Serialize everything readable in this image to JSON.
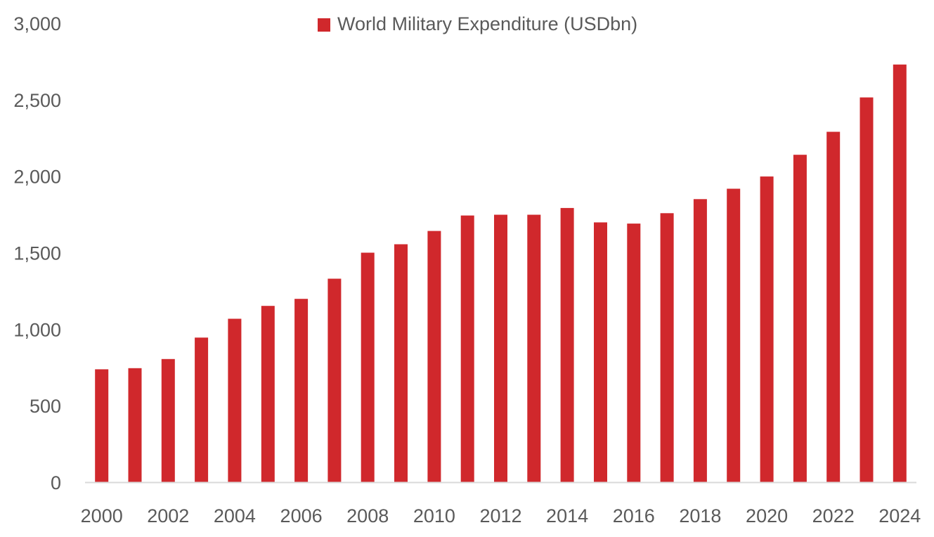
{
  "chart_data": {
    "type": "bar",
    "legend": {
      "label": "World Military Expenditure (USDbn)",
      "position": "top-center"
    },
    "series": [
      {
        "name": "World Military Expenditure (USDbn)",
        "color": "#d0282c",
        "values": [
          738,
          745,
          805,
          945,
          1068,
          1152,
          1198,
          1330,
          1500,
          1555,
          1642,
          1743,
          1748,
          1748,
          1792,
          1698,
          1690,
          1758,
          1850,
          1918,
          1998,
          2140,
          2290,
          2515,
          2730
        ]
      }
    ],
    "x": [
      2000,
      2001,
      2002,
      2003,
      2004,
      2005,
      2006,
      2007,
      2008,
      2009,
      2010,
      2011,
      2012,
      2013,
      2014,
      2015,
      2016,
      2017,
      2018,
      2019,
      2020,
      2021,
      2022,
      2023,
      2024
    ],
    "x_tick_labels": [
      "2000",
      "2002",
      "2004",
      "2006",
      "2008",
      "2010",
      "2012",
      "2014",
      "2016",
      "2018",
      "2020",
      "2022",
      "2024"
    ],
    "y_tick_labels": [
      "0",
      "500",
      "1,000",
      "1,500",
      "2,000",
      "2,500",
      "3,000"
    ],
    "ylim": [
      0,
      3000
    ],
    "grid": false,
    "axis_color": "#d9d9d9",
    "text_color": "#5a5a5a"
  }
}
